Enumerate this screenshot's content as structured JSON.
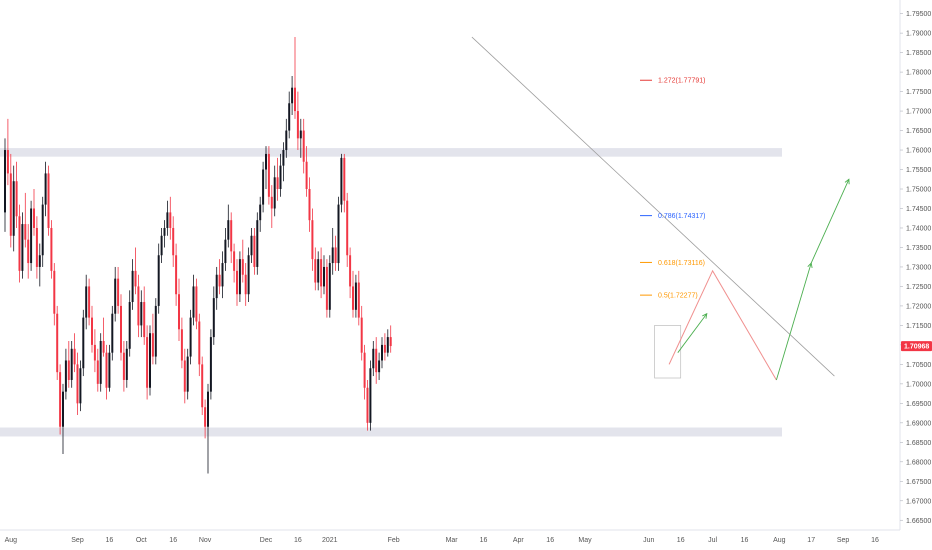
{
  "chart_data": {
    "type": "candlestick",
    "symbol_color_up": "#131722",
    "symbol_color_down": "#f23645",
    "ylim": [
      1.6625,
      1.7985
    ],
    "y_ticks": [
      "1.79500",
      "1.79000",
      "1.78500",
      "1.78000",
      "1.77500",
      "1.77000",
      "1.76500",
      "1.76000",
      "1.75500",
      "1.75000",
      "1.74500",
      "1.74000",
      "1.73500",
      "1.73000",
      "1.72500",
      "1.72000",
      "1.71500",
      "1.71000",
      "1.70500",
      "1.70000",
      "1.69500",
      "1.69000",
      "1.68500",
      "1.68000",
      "1.67500",
      "1.67000",
      "1.66500"
    ],
    "x_ticks": [
      {
        "label": "Aug",
        "t": 2
      },
      {
        "label": "Sep",
        "t": 25
      },
      {
        "label": "16",
        "t": 36
      },
      {
        "label": "Oct",
        "t": 47
      },
      {
        "label": "16",
        "t": 58
      },
      {
        "label": "Nov",
        "t": 69
      },
      {
        "label": "Dec",
        "t": 90
      },
      {
        "label": "16",
        "t": 101
      },
      {
        "label": "2021",
        "t": 112
      },
      {
        "label": "Feb",
        "t": 134
      },
      {
        "label": "Mar",
        "t": 154
      },
      {
        "label": "16",
        "t": 165
      },
      {
        "label": "Apr",
        "t": 177
      },
      {
        "label": "16",
        "t": 188
      },
      {
        "label": "May",
        "t": 200
      },
      {
        "label": "Jun",
        "t": 222
      },
      {
        "label": "16",
        "t": 233
      },
      {
        "label": "Jul",
        "t": 244
      },
      {
        "label": "16",
        "t": 255
      },
      {
        "label": "Aug",
        "t": 267
      },
      {
        "label": "17",
        "t": 278
      },
      {
        "label": "Sep",
        "t": 289
      },
      {
        "label": "16",
        "t": 300
      }
    ],
    "last_price": "1.70968",
    "last_price_value": 1.70968,
    "candles": [
      [
        1.744,
        1.763,
        1.739,
        1.76
      ],
      [
        1.76,
        1.768,
        1.751,
        1.754
      ],
      [
        1.754,
        1.759,
        1.735,
        1.738
      ],
      [
        1.738,
        1.756,
        1.734,
        1.752
      ],
      [
        1.752,
        1.757,
        1.74,
        1.743
      ],
      [
        1.743,
        1.746,
        1.726,
        1.729
      ],
      [
        1.729,
        1.744,
        1.727,
        1.741
      ],
      [
        1.741,
        1.749,
        1.735,
        1.737
      ],
      [
        1.737,
        1.741,
        1.727,
        1.731
      ],
      [
        1.731,
        1.747,
        1.729,
        1.745
      ],
      [
        1.745,
        1.75,
        1.738,
        1.74
      ],
      [
        1.74,
        1.743,
        1.727,
        1.73
      ],
      [
        1.73,
        1.736,
        1.725,
        1.733
      ],
      [
        1.733,
        1.748,
        1.73,
        1.746
      ],
      [
        1.746,
        1.757,
        1.743,
        1.754
      ],
      [
        1.754,
        1.756,
        1.738,
        1.74
      ],
      [
        1.74,
        1.742,
        1.727,
        1.729
      ],
      [
        1.729,
        1.731,
        1.715,
        1.718
      ],
      [
        1.718,
        1.72,
        1.701,
        1.703
      ],
      [
        1.703,
        1.705,
        1.687,
        1.689
      ],
      [
        1.689,
        1.7,
        1.682,
        1.698
      ],
      [
        1.698,
        1.709,
        1.696,
        1.706
      ],
      [
        1.706,
        1.711,
        1.699,
        1.701
      ],
      [
        1.701,
        1.711,
        1.699,
        1.709
      ],
      [
        1.709,
        1.713,
        1.703,
        1.705
      ],
      [
        1.705,
        1.708,
        1.692,
        1.695
      ],
      [
        1.695,
        1.706,
        1.693,
        1.704
      ],
      [
        1.704,
        1.719,
        1.702,
        1.717
      ],
      [
        1.717,
        1.728,
        1.714,
        1.725
      ],
      [
        1.725,
        1.727,
        1.715,
        1.717
      ],
      [
        1.717,
        1.72,
        1.708,
        1.71
      ],
      [
        1.71,
        1.714,
        1.703,
        1.706
      ],
      [
        1.706,
        1.709,
        1.698,
        1.7
      ],
      [
        1.7,
        1.713,
        1.698,
        1.711
      ],
      [
        1.711,
        1.717,
        1.707,
        1.708
      ],
      [
        1.708,
        1.71,
        1.696,
        1.699
      ],
      [
        1.699,
        1.71,
        1.698,
        1.708
      ],
      [
        1.708,
        1.72,
        1.706,
        1.718
      ],
      [
        1.718,
        1.73,
        1.716,
        1.727
      ],
      [
        1.727,
        1.73,
        1.718,
        1.72
      ],
      [
        1.72,
        1.723,
        1.706,
        1.708
      ],
      [
        1.708,
        1.711,
        1.698,
        1.701
      ],
      [
        1.701,
        1.711,
        1.699,
        1.709
      ],
      [
        1.709,
        1.724,
        1.707,
        1.721
      ],
      [
        1.721,
        1.732,
        1.719,
        1.729
      ],
      [
        1.729,
        1.735,
        1.723,
        1.725
      ],
      [
        1.725,
        1.728,
        1.712,
        1.715
      ],
      [
        1.715,
        1.724,
        1.712,
        1.721
      ],
      [
        1.721,
        1.725,
        1.71,
        1.712
      ],
      [
        1.712,
        1.715,
        1.696,
        1.699
      ],
      [
        1.699,
        1.715,
        1.697,
        1.713
      ],
      [
        1.713,
        1.718,
        1.705,
        1.707
      ],
      [
        1.707,
        1.722,
        1.705,
        1.72
      ],
      [
        1.72,
        1.736,
        1.718,
        1.733
      ],
      [
        1.733,
        1.74,
        1.731,
        1.738
      ],
      [
        1.738,
        1.742,
        1.735,
        1.74
      ],
      [
        1.74,
        1.747,
        1.738,
        1.744
      ],
      [
        1.744,
        1.748,
        1.737,
        1.74
      ],
      [
        1.74,
        1.743,
        1.73,
        1.733
      ],
      [
        1.733,
        1.736,
        1.72,
        1.723
      ],
      [
        1.723,
        1.727,
        1.711,
        1.714
      ],
      [
        1.714,
        1.717,
        1.704,
        1.706
      ],
      [
        1.706,
        1.709,
        1.695,
        1.698
      ],
      [
        1.698,
        1.709,
        1.696,
        1.707
      ],
      [
        1.707,
        1.719,
        1.705,
        1.717
      ],
      [
        1.717,
        1.728,
        1.715,
        1.725
      ],
      [
        1.725,
        1.727,
        1.714,
        1.716
      ],
      [
        1.716,
        1.718,
        1.702,
        1.705
      ],
      [
        1.705,
        1.707,
        1.692,
        1.694
      ],
      [
        1.694,
        1.696,
        1.686,
        1.689
      ],
      [
        1.689,
        1.7,
        1.677,
        1.698
      ],
      [
        1.698,
        1.714,
        1.696,
        1.712
      ],
      [
        1.712,
        1.725,
        1.71,
        1.722
      ],
      [
        1.722,
        1.73,
        1.719,
        1.728
      ],
      [
        1.728,
        1.732,
        1.723,
        1.725
      ],
      [
        1.725,
        1.734,
        1.722,
        1.731
      ],
      [
        1.731,
        1.74,
        1.729,
        1.737
      ],
      [
        1.737,
        1.746,
        1.735,
        1.742
      ],
      [
        1.742,
        1.744,
        1.731,
        1.734
      ],
      [
        1.734,
        1.736,
        1.726,
        1.729
      ],
      [
        1.729,
        1.732,
        1.72,
        1.723
      ],
      [
        1.723,
        1.734,
        1.721,
        1.732
      ],
      [
        1.732,
        1.737,
        1.726,
        1.728
      ],
      [
        1.728,
        1.731,
        1.72,
        1.723
      ],
      [
        1.723,
        1.735,
        1.721,
        1.733
      ],
      [
        1.733,
        1.74,
        1.731,
        1.738
      ],
      [
        1.738,
        1.74,
        1.728,
        1.73
      ],
      [
        1.73,
        1.744,
        1.728,
        1.742
      ],
      [
        1.742,
        1.748,
        1.739,
        1.746
      ],
      [
        1.746,
        1.757,
        1.744,
        1.755
      ],
      [
        1.755,
        1.761,
        1.75,
        1.759
      ],
      [
        1.759,
        1.761,
        1.746,
        1.748
      ],
      [
        1.748,
        1.751,
        1.74,
        1.745
      ],
      [
        1.745,
        1.756,
        1.743,
        1.753
      ],
      [
        1.753,
        1.758,
        1.747,
        1.75
      ],
      [
        1.75,
        1.759,
        1.748,
        1.756
      ],
      [
        1.756,
        1.762,
        1.752,
        1.76
      ],
      [
        1.76,
        1.768,
        1.758,
        1.765
      ],
      [
        1.765,
        1.775,
        1.763,
        1.772
      ],
      [
        1.772,
        1.779,
        1.769,
        1.776
      ],
      [
        1.776,
        1.789,
        1.768,
        1.77
      ],
      [
        1.77,
        1.775,
        1.76,
        1.763
      ],
      [
        1.763,
        1.768,
        1.758,
        1.765
      ],
      [
        1.765,
        1.768,
        1.754,
        1.757
      ],
      [
        1.757,
        1.761,
        1.748,
        1.75
      ],
      [
        1.75,
        1.753,
        1.739,
        1.742
      ],
      [
        1.742,
        1.745,
        1.729,
        1.732
      ],
      [
        1.732,
        1.735,
        1.724,
        1.726
      ],
      [
        1.726,
        1.734,
        1.724,
        1.732
      ],
      [
        1.732,
        1.735,
        1.722,
        1.725
      ],
      [
        1.725,
        1.733,
        1.723,
        1.73
      ],
      [
        1.73,
        1.732,
        1.717,
        1.719
      ],
      [
        1.719,
        1.733,
        1.717,
        1.731
      ],
      [
        1.731,
        1.74,
        1.728,
        1.735
      ],
      [
        1.735,
        1.738,
        1.729,
        1.731
      ],
      [
        1.731,
        1.748,
        1.729,
        1.746
      ],
      [
        1.746,
        1.759,
        1.744,
        1.758
      ],
      [
        1.758,
        1.759,
        1.744,
        1.747
      ],
      [
        1.747,
        1.749,
        1.73,
        1.733
      ],
      [
        1.733,
        1.735,
        1.722,
        1.725
      ],
      [
        1.725,
        1.729,
        1.717,
        1.719
      ],
      [
        1.719,
        1.728,
        1.717,
        1.726
      ],
      [
        1.726,
        1.729,
        1.715,
        1.717
      ],
      [
        1.717,
        1.72,
        1.706,
        1.708
      ],
      [
        1.708,
        1.71,
        1.696,
        1.699
      ],
      [
        1.699,
        1.701,
        1.688,
        1.69
      ],
      [
        1.69,
        1.706,
        1.688,
        1.704
      ],
      [
        1.704,
        1.711,
        1.702,
        1.709
      ],
      [
        1.709,
        1.712,
        1.7,
        1.703
      ],
      [
        1.703,
        1.708,
        1.701,
        1.706
      ],
      [
        1.706,
        1.712,
        1.704,
        1.71
      ],
      [
        1.71,
        1.713,
        1.706,
        1.708
      ],
      [
        1.708,
        1.714,
        1.707,
        1.712
      ],
      [
        1.712,
        1.715,
        1.708,
        1.7097
      ]
    ],
    "support_zones": [
      [
        1.7583,
        1.7605
      ],
      [
        1.6865,
        1.6888
      ]
    ],
    "trendline": {
      "t1": 161,
      "p1": 1.789,
      "t2": 286,
      "p2": 1.702
    },
    "consolidation_box": {
      "t1": 224,
      "t2": 233,
      "p1": 1.7015,
      "p2": 1.715
    },
    "fib_levels": [
      {
        "label": "1.272(1.77791)",
        "price": 1.77791,
        "color": "#e53935"
      },
      {
        "label": "0.786(1.74317)",
        "price": 1.74317,
        "color": "#2962ff"
      },
      {
        "label": "0.618(1.73116)",
        "price": 1.73116,
        "color": "#ff9800"
      },
      {
        "label": "0.5(1.72277)",
        "price": 1.72277,
        "color": "#ff9800"
      }
    ],
    "projection_red": [
      [
        229,
        1.705
      ],
      [
        244,
        1.729
      ],
      [
        266,
        1.701
      ]
    ],
    "projection_green_arrows": [
      [
        [
          232,
          1.708
        ],
        [
          242,
          1.718
        ]
      ],
      [
        [
          266,
          1.701
        ],
        [
          278,
          1.731
        ]
      ],
      [
        [
          278,
          1.731
        ],
        [
          291,
          1.7525
        ]
      ]
    ],
    "colors": {
      "up": "#131722",
      "down": "#f23645",
      "zone": "#e3e4ec",
      "trendline": "#9e9e9e",
      "projection_red": "#f0908f",
      "projection_green": "#4caf50",
      "price_tag": "#f23645",
      "grid": "#f0f3fa"
    }
  }
}
